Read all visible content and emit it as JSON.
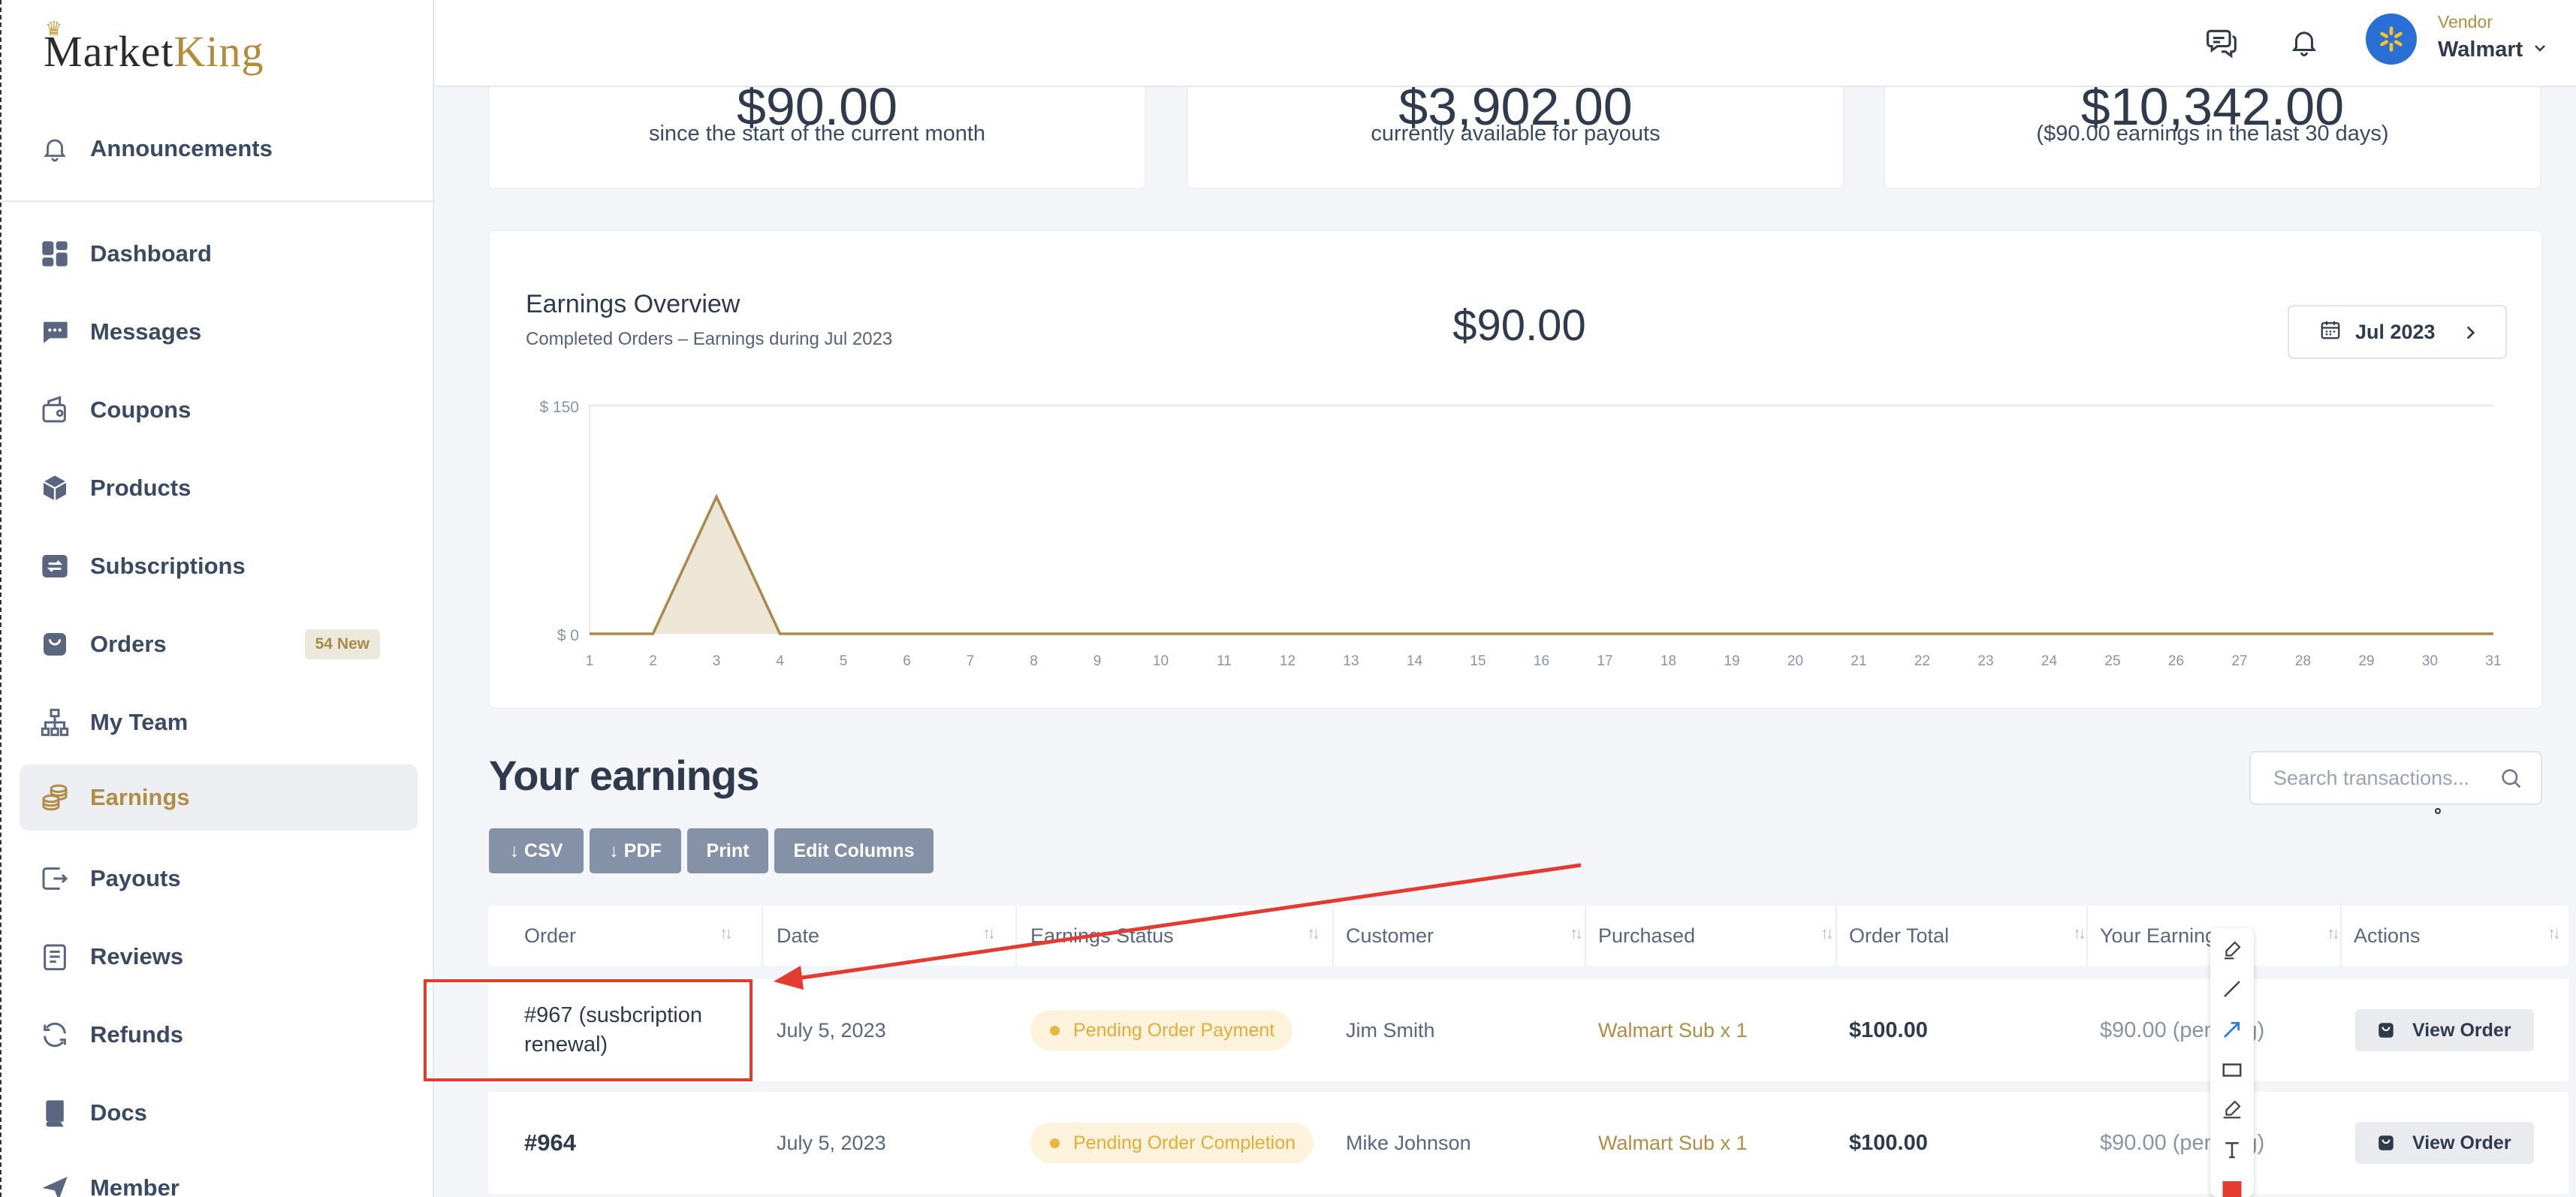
{
  "brand": {
    "logo_part1": "Market",
    "logo_part2": "King"
  },
  "sidebar": {
    "items": [
      {
        "label": "Announcements",
        "icon": "bell-icon"
      },
      {
        "label": "Dashboard",
        "icon": "grid-icon"
      },
      {
        "label": "Messages",
        "icon": "chat-icon"
      },
      {
        "label": "Coupons",
        "icon": "coupon-icon"
      },
      {
        "label": "Products",
        "icon": "box-icon"
      },
      {
        "label": "Subscriptions",
        "icon": "repeat-icon"
      },
      {
        "label": "Orders",
        "icon": "bag-icon",
        "badge": "54 New"
      },
      {
        "label": "My Team",
        "icon": "org-chart-icon"
      },
      {
        "label": "Earnings",
        "icon": "coins-icon",
        "active": true
      },
      {
        "label": "Payouts",
        "icon": "payout-icon"
      },
      {
        "label": "Reviews",
        "icon": "review-icon"
      },
      {
        "label": "Refunds",
        "icon": "refresh-icon"
      },
      {
        "label": "Docs",
        "icon": "book-icon"
      },
      {
        "label": "Member",
        "icon": "send-icon"
      }
    ]
  },
  "topbar": {
    "vendor_role": "Vendor",
    "vendor_name": "Walmart"
  },
  "stats": [
    {
      "value": "$90.00",
      "sub": "since the start of the current month"
    },
    {
      "value": "$3,902.00",
      "sub": "currently available for payouts"
    },
    {
      "value": "$10,342.00",
      "sub": "($90.00 earnings in the last 30 days)"
    }
  ],
  "overview": {
    "title": "Earnings Overview",
    "subtitle": "Completed Orders – Earnings during Jul 2023",
    "total": "$90.00",
    "month": "Jul 2023"
  },
  "chart_data": {
    "type": "area",
    "x": [
      1,
      2,
      3,
      4,
      5,
      6,
      7,
      8,
      9,
      10,
      11,
      12,
      13,
      14,
      15,
      16,
      17,
      18,
      19,
      20,
      21,
      22,
      23,
      24,
      25,
      26,
      27,
      28,
      29,
      30,
      31
    ],
    "series": [
      {
        "values": [
          0,
          0,
          90,
          0,
          0,
          0,
          0,
          0,
          0,
          0,
          0,
          0,
          0,
          0,
          0,
          0,
          0,
          0,
          0,
          0,
          0,
          0,
          0,
          0,
          0,
          0,
          0,
          0,
          0,
          0,
          0
        ]
      }
    ],
    "y_ticks": [
      "$ 150",
      "$ 0"
    ],
    "ylim": [
      0,
      150
    ],
    "colors": {
      "line": "#a88a4c",
      "fill": "#ede5d6"
    }
  },
  "earnings": {
    "title": "Your earnings",
    "search_placeholder": "Search transactions...",
    "buttons": [
      "↓ CSV",
      "↓ PDF",
      "Print",
      "Edit Columns"
    ],
    "columns": [
      "Order",
      "Date",
      "Earnings Status",
      "Customer",
      "Purchased",
      "Order Total",
      "Your Earnings",
      "Actions"
    ],
    "rows": [
      {
        "order_line1": "#967 (susbcription",
        "order_line2": "renewal)",
        "date": "July 5, 2023",
        "status": "Pending Order Payment",
        "customer": "Jim Smith",
        "purchased": "Walmart Sub x 1",
        "total": "$100.00",
        "yours": "$90.00 (pending)",
        "action": "View Order"
      },
      {
        "order": "#964",
        "date": "July 5, 2023",
        "status": "Pending Order Completion",
        "customer": "Mike Johnson",
        "purchased": "Walmart Sub x 1",
        "total": "$100.00",
        "yours": "$90.00 (pending)",
        "action": "View Order"
      }
    ]
  }
}
